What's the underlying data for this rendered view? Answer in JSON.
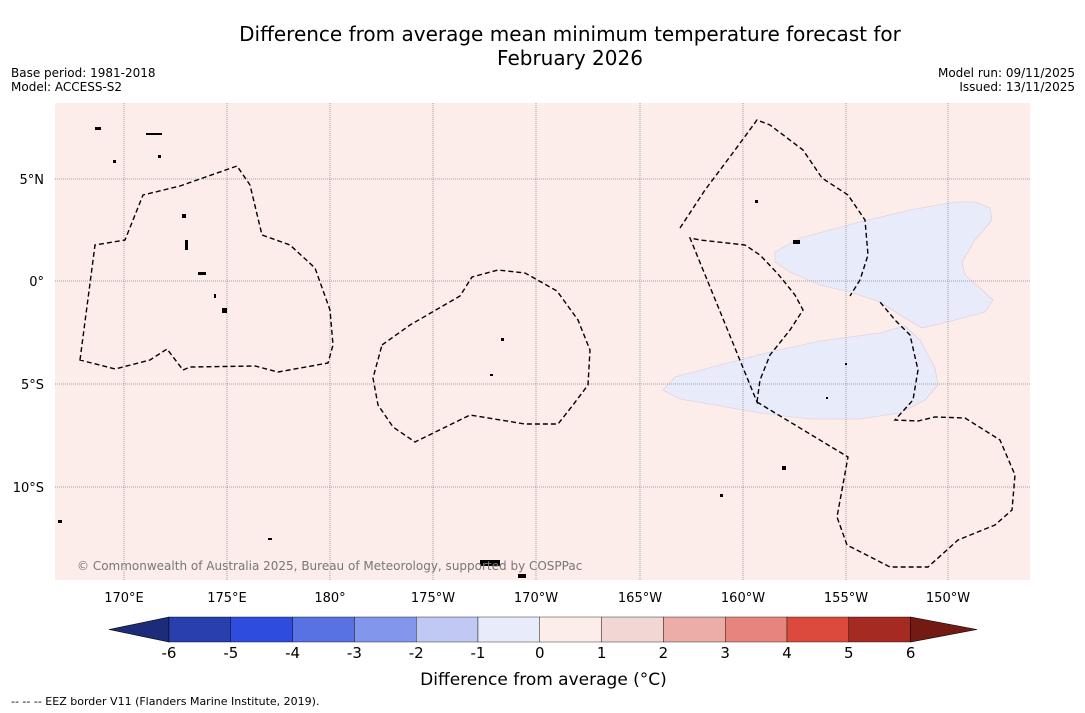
{
  "title_line1": "Difference from average mean minimum temperature forecast for",
  "title_line2": "February 2026",
  "base_period": "Base period: 1981-2018",
  "model": "Model: ACCESS-S2",
  "model_run": "Model run: 09/11/2025",
  "issued": "Issued: 13/11/2025",
  "copyright": "© Commonwealth of Australia 2025, Bureau of Meteorology, supported by COSPPac",
  "lon_ticks": [
    "170°E",
    "175°E",
    "180°",
    "175°W",
    "170°W",
    "165°W",
    "160°W",
    "155°W",
    "150°W"
  ],
  "lat_ticks": [
    "5°N",
    "0°",
    "5°S",
    "10°S"
  ],
  "colorbar": {
    "title": "Difference from average (°C)",
    "labels": [
      "-6",
      "-5",
      "-4",
      "-3",
      "-2",
      "-1",
      "0",
      "1",
      "2",
      "3",
      "4",
      "5",
      "6"
    ],
    "colors": [
      "#1c2b7a",
      "#2a3fae",
      "#2e4ddf",
      "#5872e3",
      "#8296eb",
      "#c0c9f4",
      "#e8ebfa",
      "#fcecea",
      "#f1d6d3",
      "#ecada7",
      "#e6857d",
      "#dc4a3e",
      "#a52a22",
      "#741a14"
    ]
  },
  "legend_footer": "--  --  -- EEZ border V11 (Flanders Marine Institute, 2019).",
  "map_fill": {
    "background_category": "0 to 1",
    "background_color": "#fcecea",
    "patch_category": "-1 to 0",
    "patch_color": "#e8ebfa"
  }
}
